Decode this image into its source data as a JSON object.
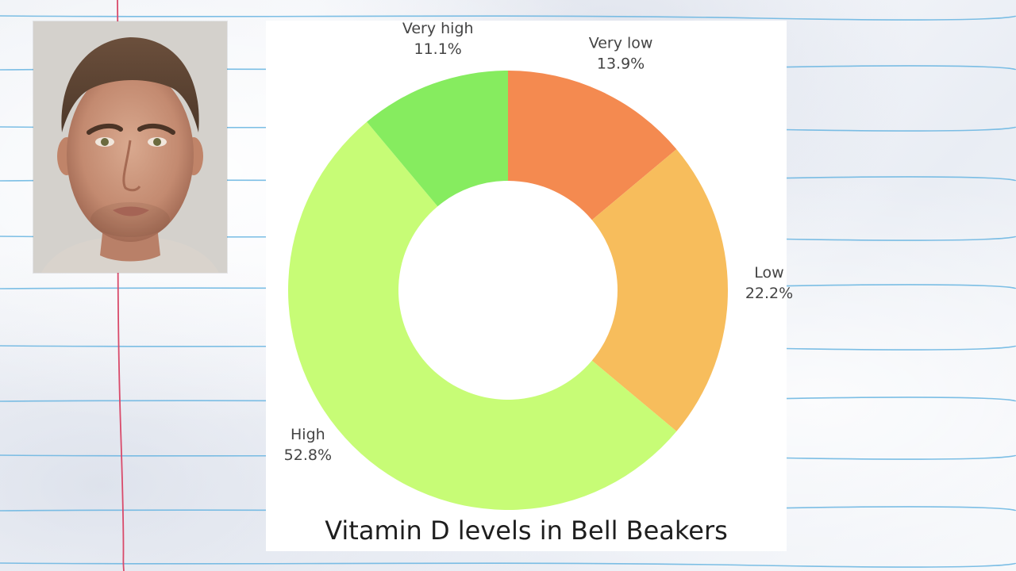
{
  "colors": {
    "paper_line": "#66b4e0",
    "margin_line": "#d94a6a",
    "label_text": "#444444",
    "title_text": "#1e1e1e"
  },
  "photo": {
    "description_icon": "face-portrait"
  },
  "chart_data": {
    "type": "pie",
    "donut": true,
    "title": "Vitamin D levels in Bell Beakers",
    "start_angle_deg": 0,
    "direction": "clockwise",
    "slices": [
      {
        "label": "Very low",
        "value": 13.9,
        "value_label": "13.9%",
        "color": "#f48a50"
      },
      {
        "label": "Low",
        "value": 22.2,
        "value_label": "22.2%",
        "color": "#f7bd5c"
      },
      {
        "label": "High",
        "value": 52.8,
        "value_label": "52.8%",
        "color": "#c7fc76"
      },
      {
        "label": "Very high",
        "value": 11.1,
        "value_label": "11.1%",
        "color": "#86ec5f"
      }
    ],
    "legend": "none"
  }
}
